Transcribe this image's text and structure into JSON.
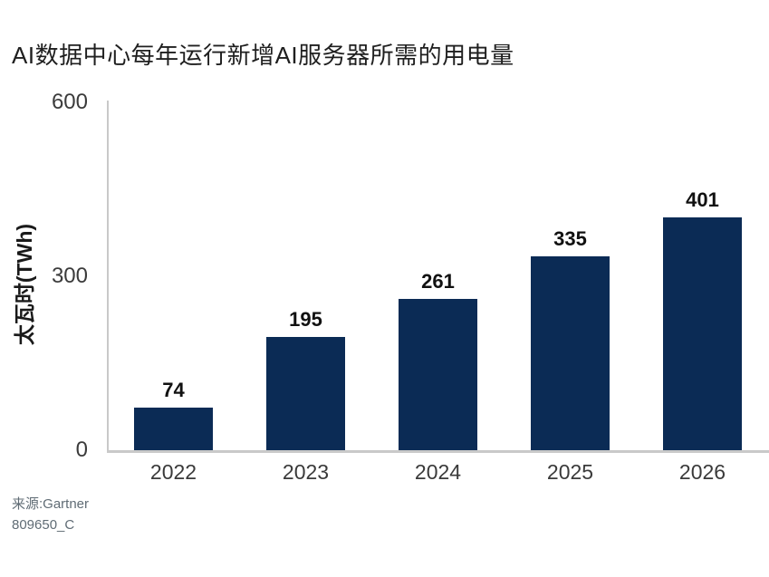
{
  "chart_data": {
    "type": "bar",
    "title": "AI数据中心每年运行新增AI服务器所需的用电量",
    "ylabel": "太瓦时(TWh)",
    "xlabel": "",
    "categories": [
      "2022",
      "2023",
      "2024",
      "2025",
      "2026"
    ],
    "values": [
      74,
      195,
      261,
      335,
      401
    ],
    "ylim": [
      0,
      600
    ],
    "yticks": [
      0,
      300,
      600
    ],
    "grid": false,
    "legend": false,
    "bar_color": "#0b2b55",
    "axis_line_color": "#c9c9c9",
    "value_label_color": "#111111",
    "tick_label_color": "#3b3b3b",
    "source": "来源:Gartner",
    "doc_id": "809650_C"
  }
}
